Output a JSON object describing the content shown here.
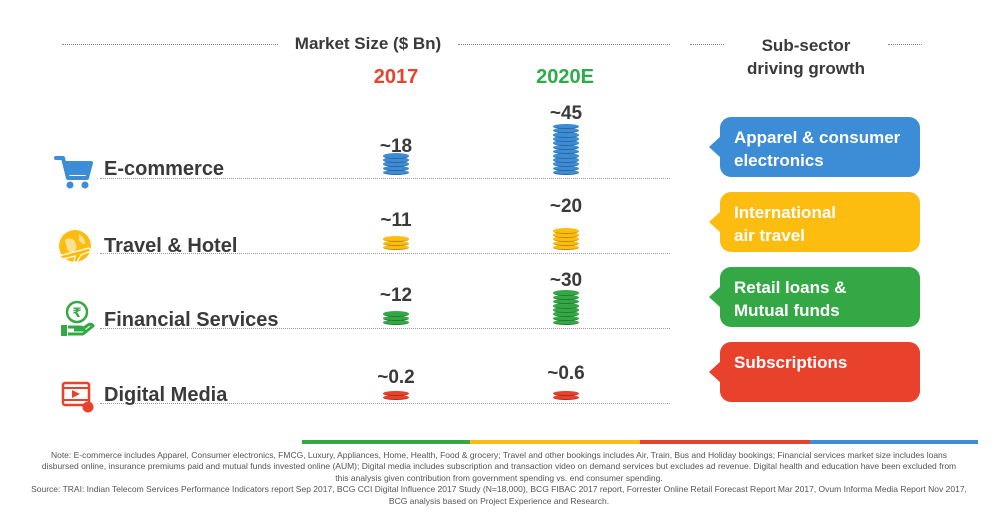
{
  "header": {
    "market_size_label": "Market Size ($ Bn)",
    "subsector_label_line1": "Sub-sector",
    "subsector_label_line2": "driving growth",
    "year_2017": "2017",
    "year_2020": "2020E"
  },
  "colors": {
    "year_2017": "#e8412c",
    "year_2020": "#2eab49",
    "blue": "#3c8cd6",
    "yellow": "#fdbd10",
    "green": "#33a845",
    "red": "#e8412c"
  },
  "chart_data": {
    "type": "bar",
    "categories": [
      "E-commerce",
      "Travel & Hotel",
      "Financial Services",
      "Digital Media"
    ],
    "series": [
      {
        "name": "2017",
        "values": [
          18,
          11,
          12,
          0.2
        ],
        "labels": [
          "~18",
          "~11",
          "~12",
          "~0.2"
        ]
      },
      {
        "name": "2020E",
        "values": [
          45,
          20,
          30,
          0.6
        ],
        "labels": [
          "~45",
          "~20",
          "~30",
          "~0.6"
        ]
      }
    ],
    "ylabel": "Market Size ($ Bn)"
  },
  "rows": [
    {
      "category": "E-commerce",
      "icon": "shopping-cart-icon",
      "color": "#3c8cd6",
      "subsector": [
        "Apparel & consumer",
        "electronics"
      ]
    },
    {
      "category": "Travel & Hotel",
      "icon": "globe-plane-icon",
      "color": "#fdbd10",
      "subsector": [
        "International",
        "air travel"
      ]
    },
    {
      "category": "Financial Services",
      "icon": "rupee-hand-icon",
      "color": "#33a845",
      "subsector": [
        "Retail loans &",
        "Mutual funds"
      ]
    },
    {
      "category": "Digital Media",
      "icon": "video-play-icon",
      "color": "#e8412c",
      "subsector": [
        "Subscriptions",
        ""
      ]
    }
  ],
  "footer": {
    "note_line1": "Note: E-commerce includes Apparel, Consumer electronics, FMCG, Luxury, Appliances, Home, Health, Food & grocery; Travel and other bookings includes Air, Train, Bus and Holiday bookings; Financial services market size includes loans",
    "note_line2": "disbursed online, insurance premiums paid and mutual funds invested online (AUM); Digital media includes subscription and transaction video on demand services but excludes ad revenue. Digital health and education have been excluded from",
    "note_line3": "this analysis given contribution from government spending vs. end consumer spending.",
    "source_line1": "Source: TRAI: Indian Telecom Services Performance Indicators report Sep 2017, BCG CCI Digital Influence 2017 Study (N=18,000), BCG FIBAC 2017 report, Forrester Online Retail Forecast Report Mar 2017, Ovum Informa Media Report Nov 2017,",
    "source_line2": "BCG analysis based on Project Experience and Research."
  }
}
